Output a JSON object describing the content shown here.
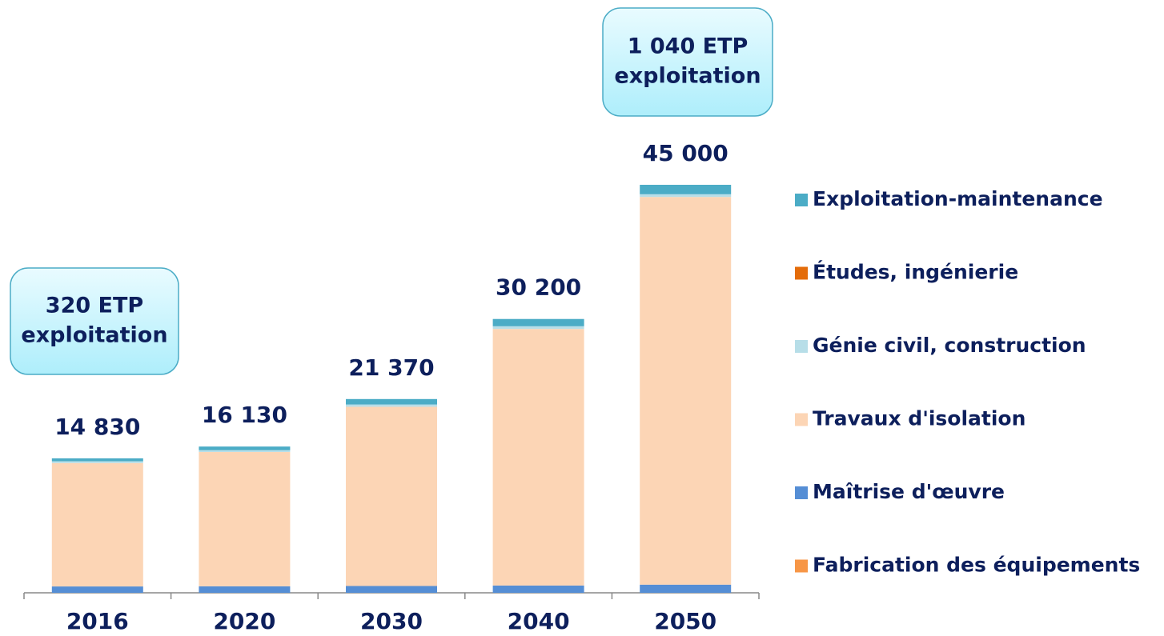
{
  "chart_data": {
    "type": "stacked_bar",
    "categories": [
      "2016",
      "2020",
      "2030",
      "2040",
      "2050"
    ],
    "series": [
      {
        "name": "Fabrication des équipements",
        "color": "#f79646",
        "values": [
          0,
          0,
          0,
          0,
          0
        ]
      },
      {
        "name": "Maîtrise d'œuvre",
        "color": "#558ed5",
        "values": [
          700,
          720,
          750,
          800,
          900
        ]
      },
      {
        "name": "Travaux d'isolation",
        "color": "#fcd5b5",
        "values": [
          13610,
          14810,
          19770,
          28300,
          42760
        ]
      },
      {
        "name": "Génie civil, construction",
        "color": "#b7dee8",
        "values": [
          200,
          200,
          250,
          300,
          300
        ]
      },
      {
        "name": "Études, ingénierie",
        "color": "#e46c0a",
        "values": [
          0,
          0,
          0,
          0,
          0
        ]
      },
      {
        "name": "Exploitation-maintenance",
        "color": "#4bacc6",
        "values": [
          320,
          400,
          600,
          800,
          1040
        ]
      }
    ],
    "totals": [
      14830,
      16130,
      21370,
      30200,
      45000
    ],
    "total_labels": [
      "14 830",
      "16 130",
      "21 370",
      "30 200",
      "45 000"
    ],
    "annotations": [
      {
        "lines": [
          "320 ETP",
          "exploitation"
        ]
      },
      {
        "lines": [
          "1 040 ETP",
          "exploitation"
        ]
      }
    ],
    "legend": "right"
  }
}
